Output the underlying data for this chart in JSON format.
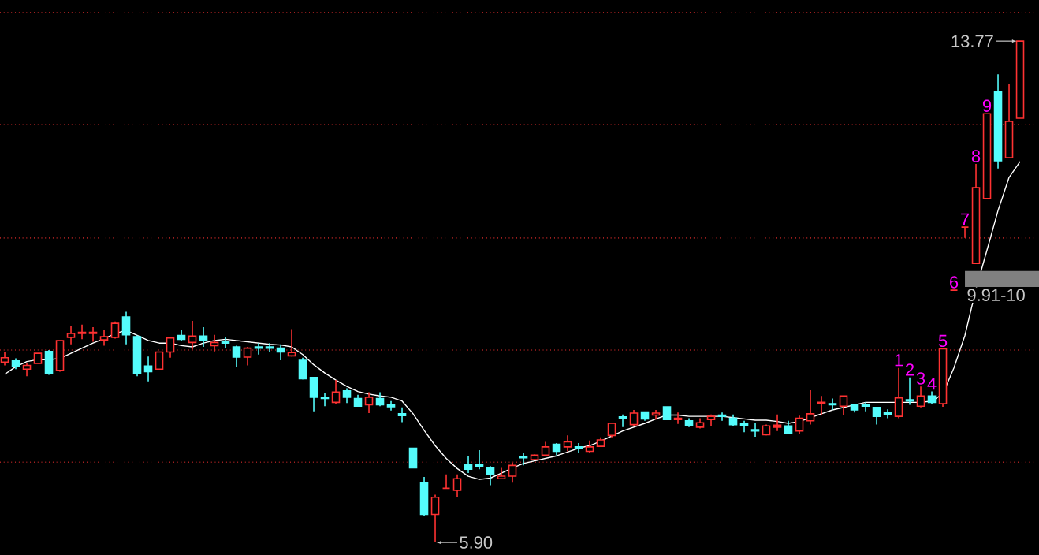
{
  "chart_data": {
    "type": "candlestick",
    "categories": [
      null,
      null,
      null,
      null,
      null,
      null,
      null,
      null,
      null,
      null,
      null,
      null,
      null,
      null,
      null,
      null,
      null,
      null,
      null,
      null,
      null,
      null,
      null,
      null,
      null,
      null,
      null,
      null,
      null,
      null,
      null,
      null,
      null,
      null,
      null,
      null,
      null,
      null,
      null,
      null,
      null,
      null,
      null,
      null,
      null,
      null,
      null,
      null,
      null,
      null,
      null,
      null,
      null,
      null,
      null,
      null,
      null,
      null,
      null,
      null,
      null,
      null,
      null,
      null,
      null,
      null,
      null,
      null,
      null,
      null,
      null,
      null,
      null,
      null,
      null,
      null,
      null,
      null,
      null,
      null,
      null,
      null,
      null,
      null,
      null,
      null,
      null,
      null,
      null,
      null,
      null,
      null,
      null
    ],
    "ohlc": [
      [
        8.73,
        8.89,
        8.68,
        8.8
      ],
      [
        8.75,
        8.79,
        8.62,
        8.66
      ],
      [
        8.62,
        8.72,
        8.51,
        8.68
      ],
      [
        8.71,
        8.87,
        8.71,
        8.87
      ],
      [
        8.9,
        8.92,
        8.53,
        8.55
      ],
      [
        8.6,
        9.07,
        8.58,
        9.07
      ],
      [
        9.12,
        9.3,
        9.01,
        9.18
      ],
      [
        9.18,
        9.32,
        9.09,
        9.2
      ],
      [
        9.18,
        9.28,
        9.05,
        9.2
      ],
      [
        9.08,
        9.23,
        8.99,
        9.13
      ],
      [
        9.12,
        9.37,
        9.1,
        9.34
      ],
      [
        9.44,
        9.52,
        9.01,
        9.16
      ],
      [
        9.13,
        9.15,
        8.51,
        8.56
      ],
      [
        8.67,
        8.82,
        8.43,
        8.58
      ],
      [
        8.62,
        8.89,
        8.62,
        8.89
      ],
      [
        8.89,
        9.13,
        8.8,
        9.11
      ],
      [
        9.15,
        9.23,
        9.07,
        9.09
      ],
      [
        9.04,
        9.38,
        8.93,
        9.14
      ],
      [
        9.14,
        9.28,
        8.97,
        9.07
      ],
      [
        8.99,
        9.16,
        8.9,
        9.04
      ],
      [
        9.05,
        9.12,
        8.95,
        9.03
      ],
      [
        8.97,
        8.99,
        8.66,
        8.81
      ],
      [
        8.81,
        8.97,
        8.68,
        8.95
      ],
      [
        8.97,
        9.03,
        8.85,
        8.95
      ],
      [
        8.97,
        9.03,
        8.89,
        8.95
      ],
      [
        8.95,
        9.01,
        8.76,
        8.89
      ],
      [
        8.83,
        9.25,
        8.82,
        8.88
      ],
      [
        8.76,
        8.8,
        8.46,
        8.47
      ],
      [
        8.49,
        8.49,
        7.96,
        8.18
      ],
      [
        8.18,
        8.24,
        8.04,
        8.16
      ],
      [
        8.1,
        8.45,
        8.08,
        8.26
      ],
      [
        8.28,
        8.32,
        8.09,
        8.18
      ],
      [
        8.16,
        8.22,
        8.04,
        8.04
      ],
      [
        8.06,
        8.26,
        7.93,
        8.18
      ],
      [
        8.16,
        8.26,
        8.04,
        8.06
      ],
      [
        8.06,
        8.12,
        7.97,
        8.03
      ],
      [
        7.92,
        8.02,
        7.79,
        7.89
      ],
      [
        7.38,
        7.38,
        7.07,
        7.07
      ],
      [
        6.84,
        6.93,
        6.32,
        6.34
      ],
      [
        6.34,
        6.65,
        5.9,
        6.61
      ],
      [
        6.75,
        6.97,
        6.75,
        6.75
      ],
      [
        6.72,
        6.97,
        6.61,
        6.9
      ],
      [
        7.13,
        7.25,
        6.99,
        7.05
      ],
      [
        7.13,
        7.35,
        7.05,
        7.1
      ],
      [
        7.08,
        7.1,
        6.8,
        6.97
      ],
      [
        6.9,
        7.07,
        6.89,
        6.94
      ],
      [
        6.94,
        7.15,
        6.84,
        7.11
      ],
      [
        7.25,
        7.3,
        7.11,
        7.23
      ],
      [
        7.2,
        7.28,
        7.19,
        7.27
      ],
      [
        7.27,
        7.48,
        7.25,
        7.4
      ],
      [
        7.44,
        7.46,
        7.27,
        7.33
      ],
      [
        7.4,
        7.58,
        7.33,
        7.48
      ],
      [
        7.4,
        7.46,
        7.3,
        7.37
      ],
      [
        7.33,
        7.5,
        7.3,
        7.4
      ],
      [
        7.41,
        7.55,
        7.4,
        7.51
      ],
      [
        7.58,
        7.78,
        7.55,
        7.77
      ],
      [
        7.87,
        7.91,
        7.71,
        7.85
      ],
      [
        7.75,
        7.98,
        7.73,
        7.93
      ],
      [
        7.95,
        7.95,
        7.81,
        7.84
      ],
      [
        7.9,
        7.98,
        7.83,
        7.93
      ],
      [
        8.03,
        8.03,
        7.83,
        7.83
      ],
      [
        7.83,
        7.94,
        7.76,
        7.85
      ],
      [
        7.81,
        7.85,
        7.71,
        7.73
      ],
      [
        7.71,
        7.85,
        7.69,
        7.78
      ],
      [
        7.83,
        7.91,
        7.73,
        7.88
      ],
      [
        7.9,
        7.94,
        7.81,
        7.88
      ],
      [
        7.85,
        7.91,
        7.73,
        7.75
      ],
      [
        7.76,
        7.81,
        7.63,
        7.74
      ],
      [
        7.67,
        7.77,
        7.56,
        7.65
      ],
      [
        7.59,
        7.75,
        7.58,
        7.73
      ],
      [
        7.71,
        7.91,
        7.65,
        7.74
      ],
      [
        7.73,
        7.81,
        7.61,
        7.62
      ],
      [
        7.65,
        7.89,
        7.61,
        7.85
      ],
      [
        7.81,
        8.29,
        7.75,
        7.92
      ],
      [
        8.08,
        8.2,
        7.9,
        8.1
      ],
      [
        8.08,
        8.16,
        7.98,
        8.06
      ],
      [
        8.04,
        8.2,
        7.9,
        8.2
      ],
      [
        8.06,
        8.08,
        7.94,
        7.98
      ],
      [
        8.06,
        8.1,
        7.96,
        8.04
      ],
      [
        8.02,
        8.02,
        7.75,
        7.88
      ],
      [
        7.94,
        7.99,
        7.85,
        7.91
      ],
      [
        7.88,
        8.64,
        7.85,
        8.17
      ],
      [
        8.14,
        8.49,
        8.06,
        8.12
      ],
      [
        8.04,
        8.35,
        8.02,
        8.2
      ],
      [
        8.2,
        8.27,
        8.08,
        8.1
      ],
      [
        8.08,
        8.94,
        8.03,
        8.94
      ],
      [
        9.86,
        9.86,
        9.86,
        9.86
      ],
      [
        10.85,
        10.85,
        10.68,
        10.85
      ],
      [
        10.28,
        11.84,
        10.28,
        11.47
      ],
      [
        11.3,
        12.63,
        11.3,
        12.63
      ],
      [
        12.98,
        13.25,
        11.77,
        11.89
      ],
      [
        11.94,
        13.1,
        11.94,
        12.51
      ],
      [
        12.56,
        13.77,
        12.56,
        13.77
      ]
    ],
    "colors": [
      "#ff3232",
      "#54fcfc",
      "#ff3232",
      "#ff3232",
      "#54fcfc",
      "#ff3232",
      "#ff3232",
      "#ff3232",
      "#ff3232",
      "#ff3232",
      "#ff3232",
      "#54fcfc",
      "#54fcfc",
      "#54fcfc",
      "#ff3232",
      "#ff3232",
      "#54fcfc",
      "#ff3232",
      "#54fcfc",
      "#ff3232",
      "#54fcfc",
      "#54fcfc",
      "#ff3232",
      "#54fcfc",
      "#54fcfc",
      "#54fcfc",
      "#ff3232",
      "#54fcfc",
      "#54fcfc",
      "#54fcfc",
      "#ff3232",
      "#54fcfc",
      "#54fcfc",
      "#ff3232",
      "#54fcfc",
      "#54fcfc",
      "#54fcfc",
      "#54fcfc",
      "#54fcfc",
      "#ff3232",
      "#ff3232",
      "#ff3232",
      "#54fcfc",
      "#54fcfc",
      "#54fcfc",
      "#ff3232",
      "#ff3232",
      "#54fcfc",
      "#ff3232",
      "#ff3232",
      "#54fcfc",
      "#ff3232",
      "#54fcfc",
      "#ff3232",
      "#ff3232",
      "#ff3232",
      "#54fcfc",
      "#ff3232",
      "#54fcfc",
      "#ff3232",
      "#54fcfc",
      "#ff3232",
      "#54fcfc",
      "#ff3232",
      "#ff3232",
      "#54fcfc",
      "#54fcfc",
      "#54fcfc",
      "#54fcfc",
      "#ff3232",
      "#ff3232",
      "#54fcfc",
      "#ff3232",
      "#ff3232",
      "#ff3232",
      "#54fcfc",
      "#ff3232",
      "#54fcfc",
      "#54fcfc",
      "#54fcfc",
      "#54fcfc",
      "#ff3232",
      "#54fcfc",
      "#ff3232",
      "#54fcfc",
      "#ff3232",
      "#ff3232",
      "#ff3232",
      "#ff3232",
      "#ff3232",
      "#54fcfc",
      "#ff3232",
      "#ff3232"
    ],
    "series": [
      {
        "type": "line",
        "color": "#ffffff",
        "values": [
          8.54,
          8.66,
          8.74,
          8.77,
          8.77,
          8.79,
          8.87,
          8.95,
          9.03,
          9.1,
          9.18,
          9.23,
          9.15,
          9.07,
          9.03,
          9.03,
          8.99,
          8.97,
          9.03,
          9.07,
          9.09,
          9.07,
          9.05,
          9.03,
          9.01,
          9.0,
          8.97,
          8.85,
          8.69,
          8.56,
          8.45,
          8.35,
          8.27,
          8.23,
          8.2,
          8.18,
          8.12,
          7.92,
          7.66,
          7.42,
          7.22,
          7.06,
          6.94,
          6.89,
          6.91,
          6.99,
          7.07,
          7.14,
          7.18,
          7.22,
          7.26,
          7.32,
          7.38,
          7.42,
          7.49,
          7.57,
          7.65,
          7.71,
          7.77,
          7.84,
          7.9,
          7.9,
          7.88,
          7.88,
          7.88,
          7.88,
          7.86,
          7.84,
          7.82,
          7.82,
          7.8,
          7.77,
          7.8,
          7.86,
          7.92,
          7.98,
          8.02,
          8.06,
          8.1,
          8.1,
          8.1,
          8.1,
          8.1,
          8.1,
          8.12,
          8.23,
          8.64,
          9.15,
          9.88,
          10.49,
          11.11,
          11.63,
          11.88
        ]
      }
    ],
    "value_labels": [
      null,
      null,
      null,
      null,
      null,
      null,
      null,
      null,
      null,
      null,
      null,
      null,
      null,
      null,
      null,
      null,
      null,
      null,
      null,
      null,
      null,
      null,
      null,
      null,
      null,
      null,
      null,
      null,
      null,
      null,
      null,
      null,
      null,
      null,
      null,
      null,
      null,
      null,
      null,
      null,
      null,
      null,
      null,
      null,
      null,
      null,
      null,
      null,
      null,
      null,
      null,
      null,
      null,
      null,
      null,
      null,
      null,
      null,
      null,
      null,
      null,
      null,
      null,
      null,
      null,
      null,
      null,
      null,
      null,
      null,
      null,
      null,
      null,
      null,
      null,
      null,
      null,
      null,
      null,
      null,
      null,
      "1",
      "2",
      "3",
      "4",
      "5",
      "6",
      "7",
      "8",
      "9",
      null,
      null,
      null
    ],
    "annotations": [
      "13.77",
      "5.90"
    ],
    "bands": [
      {
        "axis": "y",
        "from": 9.91,
        "to": 10.16,
        "label": "9.91-10",
        "color": "#808080"
      }
    ],
    "yticks": [
      {
        "value": 7.16,
        "label": null
      },
      {
        "value": 8.92,
        "label": null
      },
      {
        "value": 10.68,
        "label": null
      },
      {
        "value": 12.46,
        "label": null
      },
      {
        "value": 14.22,
        "label": null
      }
    ],
    "grid": "y"
  }
}
